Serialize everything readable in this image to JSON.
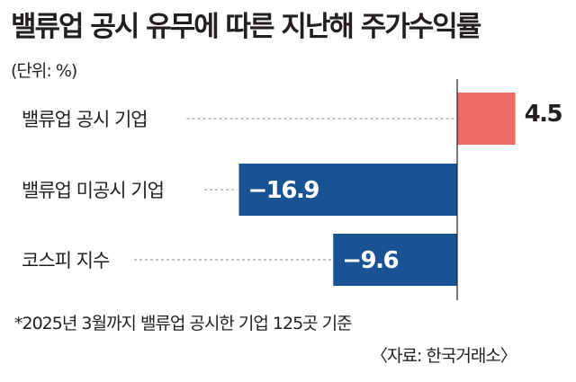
{
  "header": {
    "title": "밸류업 공시 유무에 따른 지난해 주가수익률",
    "unit": "(단위: %)"
  },
  "footer": {
    "note": "*2025년 3월까지 밸류업 공시한 기업 125곳 기준",
    "source": "〈자료: 한국거래소〉"
  },
  "colors": {
    "positive": "#ee6a64",
    "negative": "#1a5393",
    "positive_label": "#231f20",
    "negative_label": "#ffffff"
  },
  "chart_data": {
    "type": "bar",
    "orientation": "horizontal",
    "title": "밸류업 공시 유무에 따른 지난해 주가수익률",
    "unit": "(단위: %)",
    "categories": [
      "밸류업 공시 기업",
      "밸류업 미공시 기업",
      "코스피 지수"
    ],
    "values": [
      4.5,
      -16.9,
      -9.6
    ],
    "value_labels": [
      "4.5",
      "−16.9",
      "−9.6"
    ],
    "xlim": [
      -16.9,
      4.5
    ],
    "grid": false,
    "legend": "none"
  }
}
